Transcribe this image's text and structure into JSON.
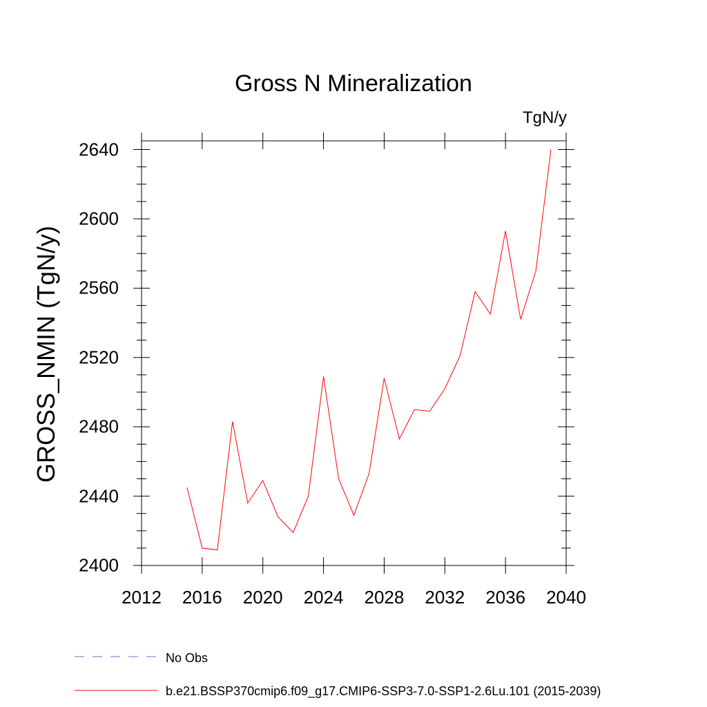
{
  "chart_data": {
    "type": "line",
    "title": "Gross N Mineralization",
    "units": "TgN/y",
    "ylabel": "GROSS_NMIN  (TgN/y)",
    "xlabel": "",
    "xlim": [
      2012,
      2040
    ],
    "ylim": [
      2400,
      2645
    ],
    "xticks": [
      "2012",
      "2016",
      "2020",
      "2024",
      "2028",
      "2032",
      "2036",
      "2040"
    ],
    "yticks": [
      "2400",
      "2440",
      "2480",
      "2520",
      "2560",
      "2600",
      "2640"
    ],
    "grid": false,
    "series": [
      {
        "name": "b.e21.BSSP370cmip6.f09_g17.CMIP6-SSP3-7.0-SSP1-2.6Lu.101 (2015-2039)",
        "color": "#ff0000",
        "x": [
          2015,
          2016,
          2017,
          2018,
          2019,
          2020,
          2021,
          2022,
          2023,
          2024,
          2025,
          2026,
          2027,
          2028,
          2029,
          2030,
          2031,
          2032,
          2033,
          2034,
          2035,
          2036,
          2037,
          2038,
          2039
        ],
        "y": [
          2445,
          2410,
          2409,
          2483,
          2436,
          2449,
          2428,
          2419,
          2440,
          2509,
          2450,
          2429,
          2453,
          2508,
          2473,
          2490,
          2489,
          2502,
          2521,
          2558,
          2545,
          2593,
          2542,
          2570,
          2640
        ]
      }
    ]
  },
  "legend": [
    {
      "label": "No Obs",
      "color": "#7b68c8",
      "style": "dashed"
    },
    {
      "label": "b.e21.BSSP370cmip6.f09_g17.CMIP6-SSP3-7.0-SSP1-2.6Lu.101 (2015-2039)",
      "color": "#ff0000",
      "style": "solid"
    }
  ]
}
